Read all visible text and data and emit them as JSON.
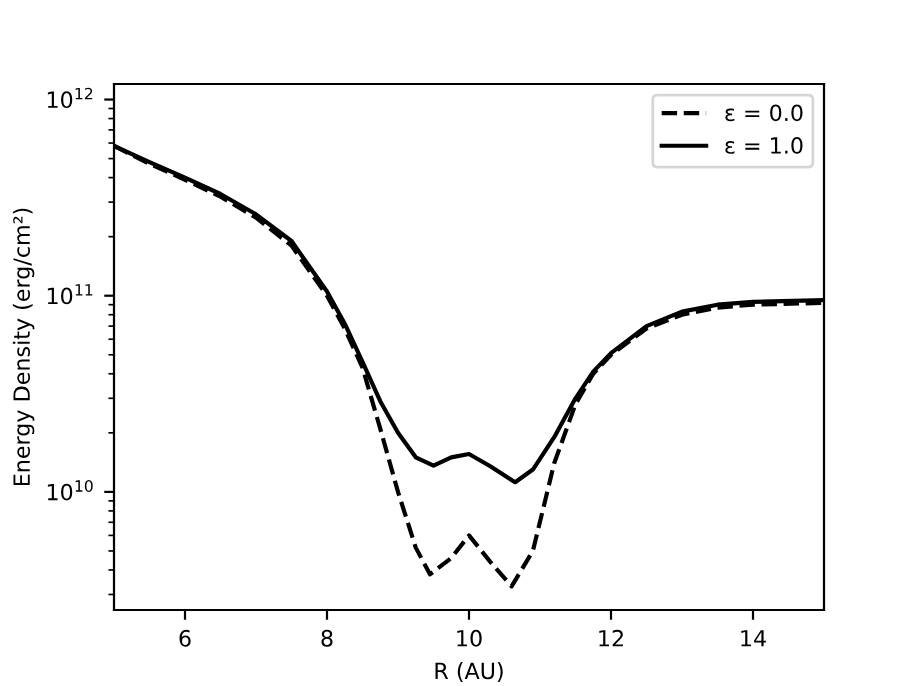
{
  "chart_data": {
    "type": "line",
    "xlabel": "R (AU)",
    "ylabel": "Energy Density (erg/cm²)",
    "log": "y",
    "xlim": [
      5,
      15
    ],
    "xticks": [
      6,
      8,
      10,
      12,
      14
    ],
    "ylim": [
      2500000000.0,
      1200000000000.0
    ],
    "yticks": [
      {
        "value": 10000000000.0,
        "label": "10$^{10}$"
      },
      {
        "value": 100000000000.0,
        "label": "10$^{11}$"
      },
      {
        "value": 1000000000000.0,
        "label": "10$^{12}$"
      }
    ],
    "legend": "top right",
    "grid": false,
    "series": [
      {
        "name": "ε = 0.0",
        "color": "#000000",
        "line_style": "dashed",
        "x": [
          5,
          5.5,
          6,
          6.5,
          7,
          7.5,
          8,
          8.25,
          8.5,
          8.75,
          9,
          9.25,
          9.45,
          9.75,
          10,
          10.3,
          10.6,
          10.9,
          11.2,
          11.5,
          11.75,
          12,
          12.5,
          13,
          13.5,
          14,
          15
        ],
        "values": [
          580000000000.0,
          470000000000.0,
          390000000000.0,
          320000000000.0,
          250000000000.0,
          180000000000.0,
          100000000000.0,
          68000000000.0,
          43000000000.0,
          21000000000.0,
          10000000000.0,
          5200000000.0,
          3800000000.0,
          4600000000.0,
          6000000000.0,
          4400000000.0,
          3300000000.0,
          5000000000.0,
          14000000000.0,
          28000000000.0,
          40000000000.0,
          50000000000.0,
          68000000000.0,
          80000000000.0,
          87000000000.0,
          90000000000.0,
          92000000000.0
        ]
      },
      {
        "name": "ε = 1.0",
        "color": "#000000",
        "line_style": "solid",
        "x": [
          5,
          5.5,
          6,
          6.5,
          7,
          7.5,
          8,
          8.25,
          8.5,
          8.75,
          9,
          9.25,
          9.5,
          9.75,
          10,
          10.3,
          10.65,
          10.9,
          11.2,
          11.5,
          11.75,
          12,
          12.5,
          13,
          13.5,
          14,
          15
        ],
        "values": [
          580000000000.0,
          480000000000.0,
          400000000000.0,
          330000000000.0,
          260000000000.0,
          190000000000.0,
          105000000000.0,
          72000000000.0,
          46000000000.0,
          29000000000.0,
          20000000000.0,
          15000000000.0,
          13600000000.0,
          15000000000.0,
          15600000000.0,
          13500000000.0,
          11200000000.0,
          13000000000.0,
          19000000000.0,
          30000000000.0,
          41000000000.0,
          51000000000.0,
          70000000000.0,
          83000000000.0,
          90000000000.0,
          93000000000.0,
          95000000000.0
        ]
      }
    ]
  }
}
